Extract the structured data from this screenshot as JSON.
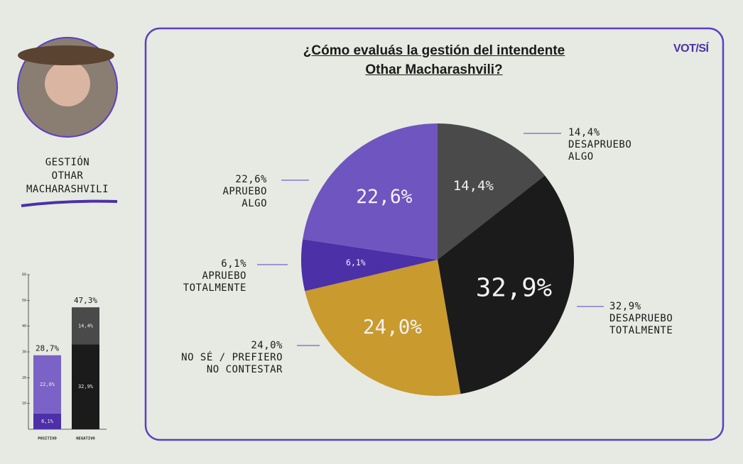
{
  "sidebar": {
    "title": "GESTIÓN\nOTHAR\nMACHARASHVILI"
  },
  "logo": "VOT/SÍ",
  "chart_data": [
    {
      "type": "pie",
      "title": "¿Cómo evaluás la gestión del intendente\nOthar Macharashvili?",
      "categories": [
        "DESAPRUEBO\nALGO",
        "DESAPRUEBO\nTOTALMENTE",
        "NO SÉ / PREFIERO\nNO CONTESTAR",
        "APRUEBO\nTOTALMENTE",
        "APRUEBO\nALGO"
      ],
      "values": [
        14.4,
        32.9,
        24.0,
        6.1,
        22.6
      ],
      "value_labels": [
        "14,4%",
        "32,9%",
        "24,0%",
        "6,1%",
        "22,6%"
      ],
      "colors": [
        "#4a4a4a",
        "#1b1b1b",
        "#c99a2e",
        "#4b30a8",
        "#6f55c0"
      ]
    },
    {
      "type": "bar",
      "categories": [
        "POSITIVO",
        "NEGATIVO"
      ],
      "series": [
        {
          "color": "#4b30a8",
          "values": [
            6.1,
            null
          ],
          "value_labels": [
            "6,1%",
            null
          ]
        },
        {
          "color": "#7a62c6",
          "values": [
            22.6,
            null
          ],
          "value_labels": [
            "22,6%",
            null
          ]
        },
        {
          "color": "#1b1b1b",
          "values": [
            null,
            32.9
          ],
          "value_labels": [
            null,
            "32,9%"
          ]
        },
        {
          "color": "#4a4a4a",
          "values": [
            null,
            14.4
          ],
          "value_labels": [
            null,
            "14,4%"
          ]
        }
      ],
      "totals": [
        28.7,
        47.3
      ],
      "total_labels": [
        "28,7%",
        "47,3%"
      ],
      "ylim": [
        0,
        60
      ],
      "yticks": [
        10,
        20,
        30,
        40,
        50,
        60
      ]
    }
  ]
}
